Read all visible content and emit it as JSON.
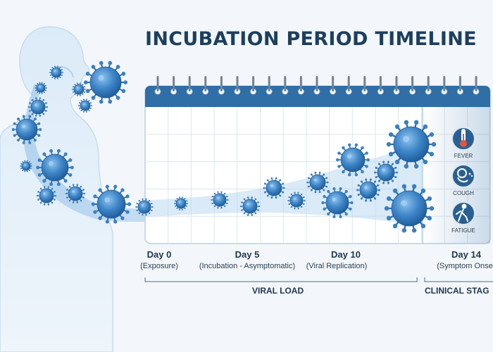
{
  "title": "INCUBATION PERIOD TIMELINE",
  "timeline": {
    "days": [
      {
        "day": "Day 0",
        "note": "(Exposure)"
      },
      {
        "day": "Day 5",
        "note": "(Incubation - Asymptomatic)"
      },
      {
        "day": "Day 10",
        "note": "(Viral Replication)"
      },
      {
        "day": "Day 14",
        "note": "(Symptom Onse"
      }
    ],
    "phases": [
      {
        "label": "VIRAL LOAD"
      },
      {
        "label": "CLINICAL STAG"
      }
    ]
  },
  "symptoms": [
    {
      "label": "FEVER",
      "icon": "thermometer-icon"
    },
    {
      "label": "COUGH",
      "icon": "cough-icon"
    },
    {
      "label": "FATIGUE",
      "icon": "fatigue-icon"
    }
  ],
  "colors": {
    "calendar_header": "#2f6ea6",
    "virus": "#3b7fc0",
    "title": "#1d3f5e",
    "band": "#cfe3f5"
  }
}
